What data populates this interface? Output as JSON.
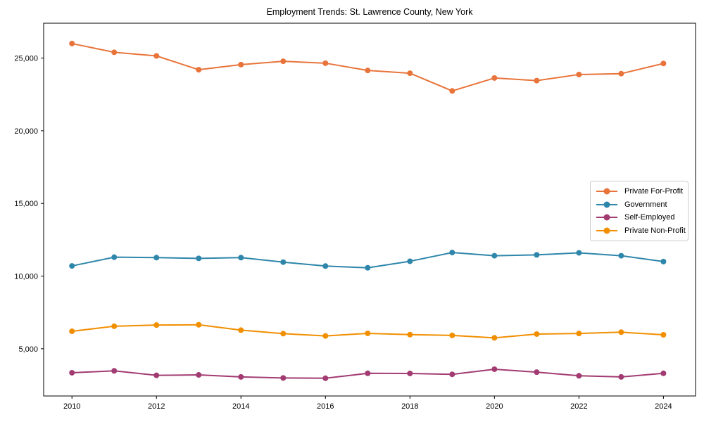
{
  "chart_data": {
    "type": "line",
    "title": "Employment Trends: St. Lawrence County, New York",
    "xlabel": "",
    "ylabel": "",
    "x": [
      2010,
      2011,
      2012,
      2013,
      2014,
      2015,
      2016,
      2017,
      2018,
      2019,
      2020,
      2021,
      2022,
      2023,
      2024
    ],
    "series": [
      {
        "name": "Private For-Profit",
        "color": "#E8743B",
        "values": [
          26000,
          25400,
          25150,
          24200,
          24550,
          24780,
          24650,
          24150,
          23960,
          22740,
          23630,
          23450,
          23870,
          23930,
          24630
        ]
      },
      {
        "name": "Government",
        "color": "#2E86AB",
        "values": [
          10700,
          11300,
          11270,
          11220,
          11270,
          10960,
          10690,
          10570,
          11020,
          11620,
          11400,
          11460,
          11600,
          11400,
          11000
        ]
      },
      {
        "name": "Self-Employed",
        "color": "#A23B72",
        "values": [
          3350,
          3480,
          3170,
          3200,
          3060,
          2990,
          2970,
          3310,
          3300,
          3240,
          3590,
          3390,
          3140,
          3060,
          3310
        ]
      },
      {
        "name": "Private Non-Profit",
        "color": "#F18F01",
        "values": [
          6200,
          6550,
          6630,
          6650,
          6280,
          6040,
          5880,
          6060,
          5970,
          5920,
          5750,
          6010,
          6050,
          6140,
          5960
        ]
      }
    ],
    "xticks": [
      2010,
      2012,
      2014,
      2016,
      2018,
      2020,
      2022,
      2024
    ],
    "yticks": [
      {
        "value": 5000,
        "label": "5,000"
      },
      {
        "value": 10000,
        "label": "10,000"
      },
      {
        "value": 15000,
        "label": "15,000"
      },
      {
        "value": 20000,
        "label": "20,000"
      },
      {
        "value": 25000,
        "label": "25,000"
      }
    ],
    "xlim": [
      2009.33,
      2024.76
    ],
    "ylim": [
      1750,
      27400
    ],
    "grid": false,
    "legend_position": "center right",
    "marker": "circle",
    "line_width": 2,
    "marker_radius": 4,
    "spine_color": "#000000"
  }
}
